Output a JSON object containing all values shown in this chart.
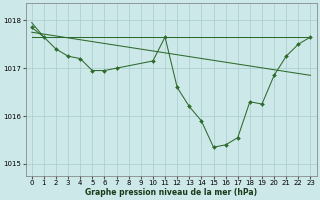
{
  "line_main": {
    "x": [
      0,
      1,
      2,
      3,
      4,
      5,
      6,
      7,
      10,
      11,
      12,
      13,
      14,
      15,
      16,
      17,
      18,
      19,
      20,
      21,
      22,
      23
    ],
    "y": [
      1017.85,
      1017.65,
      1017.4,
      1017.25,
      1017.2,
      1016.95,
      1016.95,
      1017.0,
      1017.15,
      1017.65,
      1016.6,
      1016.2,
      1015.9,
      1015.35,
      1015.4,
      1015.55,
      1016.3,
      1016.25,
      1016.85,
      1017.25,
      1017.5,
      1017.65
    ]
  },
  "line_flat": {
    "x": [
      0,
      23
    ],
    "y": [
      1017.65,
      1017.65
    ]
  },
  "line_slope": {
    "x": [
      0,
      23
    ],
    "y": [
      1017.75,
      1016.85
    ]
  },
  "line_top": {
    "x": [
      0,
      1
    ],
    "y": [
      1017.95,
      1017.65
    ]
  },
  "background_color": "#cde8e8",
  "grid_color": "#a8cccc",
  "line_color": "#2d6a2d",
  "xlabel": "Graphe pression niveau de la mer (hPa)",
  "xlabel_fontsize": 5.5,
  "tick_fontsize": 5.0,
  "ylim": [
    1014.75,
    1018.35
  ],
  "xlim": [
    -0.5,
    23.5
  ],
  "yticks": [
    1015,
    1016,
    1017,
    1018
  ],
  "xticks": [
    0,
    1,
    2,
    3,
    4,
    5,
    6,
    7,
    8,
    9,
    10,
    11,
    12,
    13,
    14,
    15,
    16,
    17,
    18,
    19,
    20,
    21,
    22,
    23
  ],
  "markersize": 2.0,
  "linewidth": 0.75
}
